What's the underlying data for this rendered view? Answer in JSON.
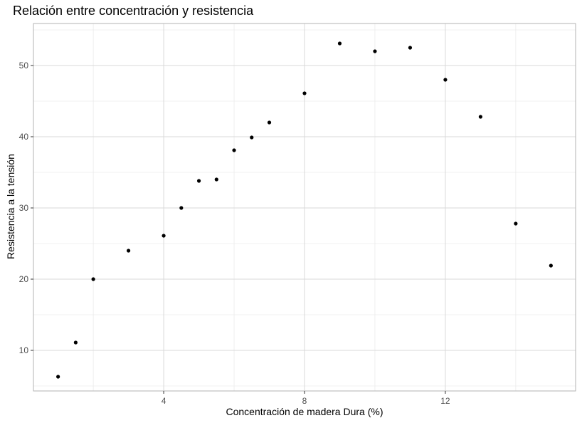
{
  "chart_data": {
    "type": "scatter",
    "title": "Relación entre concentración y resistencia",
    "xlabel": "Concentración de madera Dura (%)",
    "ylabel": "Resistencia a la tensión",
    "xlim": [
      0.3,
      15.7
    ],
    "ylim": [
      4.3,
      55.9
    ],
    "x_ticks": [
      4,
      8,
      12
    ],
    "x_minor_ticks": [
      2,
      6,
      10,
      14
    ],
    "y_ticks": [
      10,
      20,
      30,
      40,
      50
    ],
    "y_minor_ticks": [
      5,
      15,
      25,
      35,
      45,
      55
    ],
    "grid": true,
    "points": [
      {
        "x": 1.0,
        "y": 6.3
      },
      {
        "x": 1.5,
        "y": 11.1
      },
      {
        "x": 2.0,
        "y": 20.0
      },
      {
        "x": 3.0,
        "y": 24.0
      },
      {
        "x": 4.0,
        "y": 26.1
      },
      {
        "x": 4.5,
        "y": 30.0
      },
      {
        "x": 5.0,
        "y": 33.8
      },
      {
        "x": 5.5,
        "y": 34.0
      },
      {
        "x": 6.0,
        "y": 38.1
      },
      {
        "x": 6.5,
        "y": 39.9
      },
      {
        "x": 7.0,
        "y": 42.0
      },
      {
        "x": 8.0,
        "y": 46.1
      },
      {
        "x": 9.0,
        "y": 53.1
      },
      {
        "x": 10.0,
        "y": 52.0
      },
      {
        "x": 11.0,
        "y": 52.5
      },
      {
        "x": 12.0,
        "y": 48.0
      },
      {
        "x": 13.0,
        "y": 42.8
      },
      {
        "x": 14.0,
        "y": 27.8
      },
      {
        "x": 15.0,
        "y": 21.9
      }
    ],
    "colors": {
      "point": "#000000",
      "grid_major": "#d9d9d9",
      "grid_minor": "#ebebeb",
      "panel_border": "#b3b3b3"
    }
  }
}
